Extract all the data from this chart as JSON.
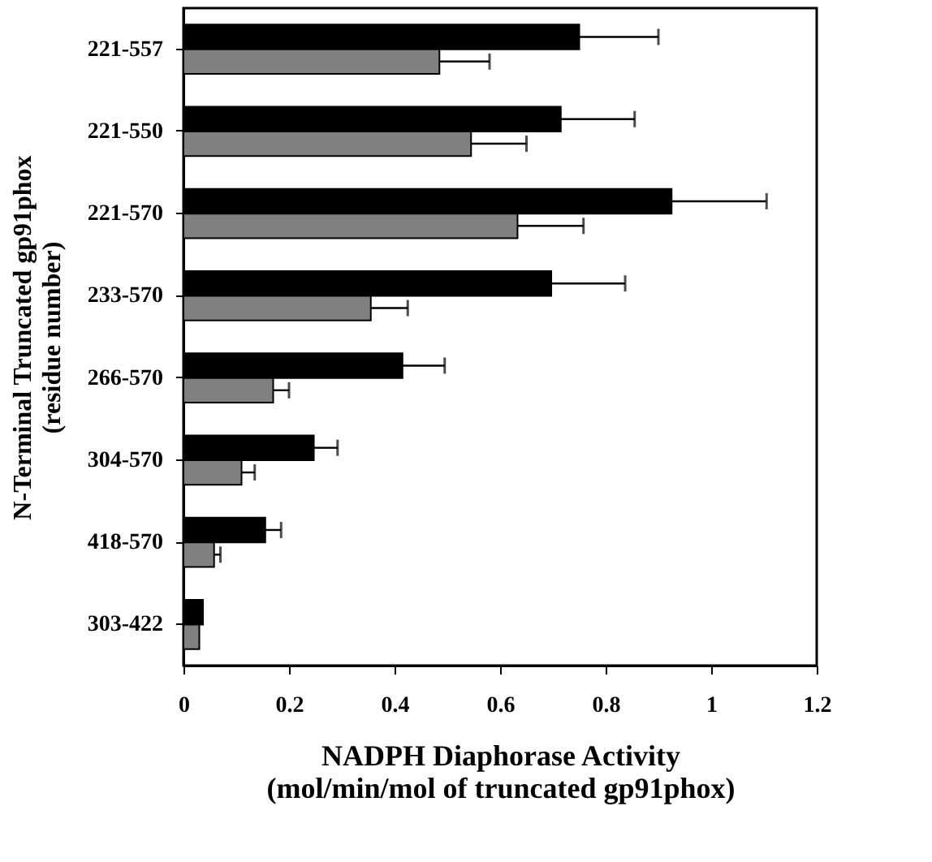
{
  "chart_data": {
    "type": "bar",
    "orientation": "horizontal",
    "xlabel": "NADPH Diaphorase Activity\n(mol/min/mol of truncated gp91phox)",
    "ylabel": "N-Terminal Truncated gp91phox\n(residue number)",
    "categories": [
      "221-557",
      "221-550",
      "221-570",
      "233-570",
      "266-570",
      "304-570",
      "418-570",
      "303-422"
    ],
    "series": [
      {
        "color": "#000000",
        "values": [
          0.75,
          0.715,
          0.925,
          0.697,
          0.415,
          0.247,
          0.155,
          0.037
        ],
        "errors": [
          0.15,
          0.14,
          0.18,
          0.14,
          0.08,
          0.045,
          0.03,
          null
        ]
      },
      {
        "color": "#808080",
        "values": [
          0.485,
          0.545,
          0.633,
          0.355,
          0.17,
          0.11,
          0.058,
          0.03
        ],
        "errors": [
          0.095,
          0.105,
          0.125,
          0.07,
          0.03,
          0.025,
          0.012,
          null
        ]
      }
    ],
    "xlim": [
      0,
      1.2
    ],
    "xticks": [
      0,
      0.2,
      0.4,
      0.6,
      0.8,
      1,
      1.2
    ],
    "grid": false,
    "legend": false
  }
}
